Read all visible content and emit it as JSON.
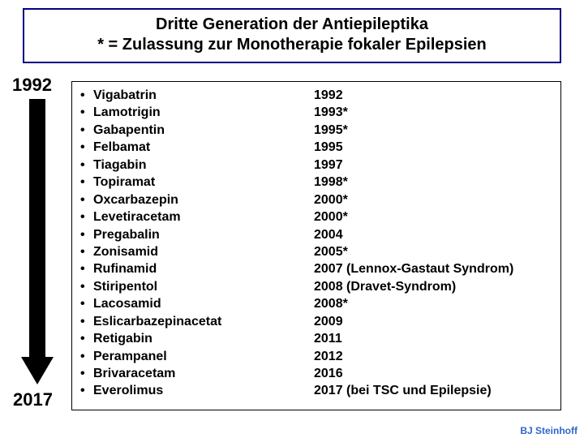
{
  "colors": {
    "background": "#ffffff",
    "text": "#000000",
    "title_border": "#000080",
    "credit": "#3265cc",
    "arrow": "#000000"
  },
  "typography": {
    "family": "Arial",
    "title_size_pt": 20,
    "body_size_pt": 16,
    "year_label_size_pt": 22,
    "credit_size_pt": 12,
    "weight": "bold"
  },
  "title": {
    "line1": "Dritte Generation der Antiepileptika",
    "line2": "* = Zulassung zur Monotherapie fokaler Epilepsien"
  },
  "timeline": {
    "start_label": "1992",
    "end_label": "2017"
  },
  "drugs": [
    {
      "name": "Vigabatrin",
      "year": "1992"
    },
    {
      "name": "Lamotrigin",
      "year": "1993*"
    },
    {
      "name": "Gabapentin",
      "year": "1995*"
    },
    {
      "name": "Felbamat",
      "year": "1995"
    },
    {
      "name": "Tiagabin",
      "year": "1997"
    },
    {
      "name": "Topiramat",
      "year": "1998*"
    },
    {
      "name": "Oxcarbazepin",
      "year": "2000*"
    },
    {
      "name": "Levetiracetam",
      "year": "2000*"
    },
    {
      "name": "Pregabalin",
      "year": "2004"
    },
    {
      "name": "Zonisamid",
      "year": "2005*"
    },
    {
      "name": "Rufinamid",
      "year": "2007 (Lennox-Gastaut Syndrom)"
    },
    {
      "name": "Stiripentol",
      "year": "2008 (Dravet-Syndrom)"
    },
    {
      "name": "Lacosamid",
      "year": "2008*"
    },
    {
      "name": "Eslicarbazepinacetat",
      "year": "2009"
    },
    {
      "name": "Retigabin",
      "year": "2011"
    },
    {
      "name": "Perampanel",
      "year": "2012"
    },
    {
      "name": "Brivaracetam",
      "year": "2016"
    },
    {
      "name": "Everolimus",
      "year": "2017 (bei TSC und Epilepsie)"
    }
  ],
  "credit": "BJ Steinhoff",
  "bullet_char": "•"
}
